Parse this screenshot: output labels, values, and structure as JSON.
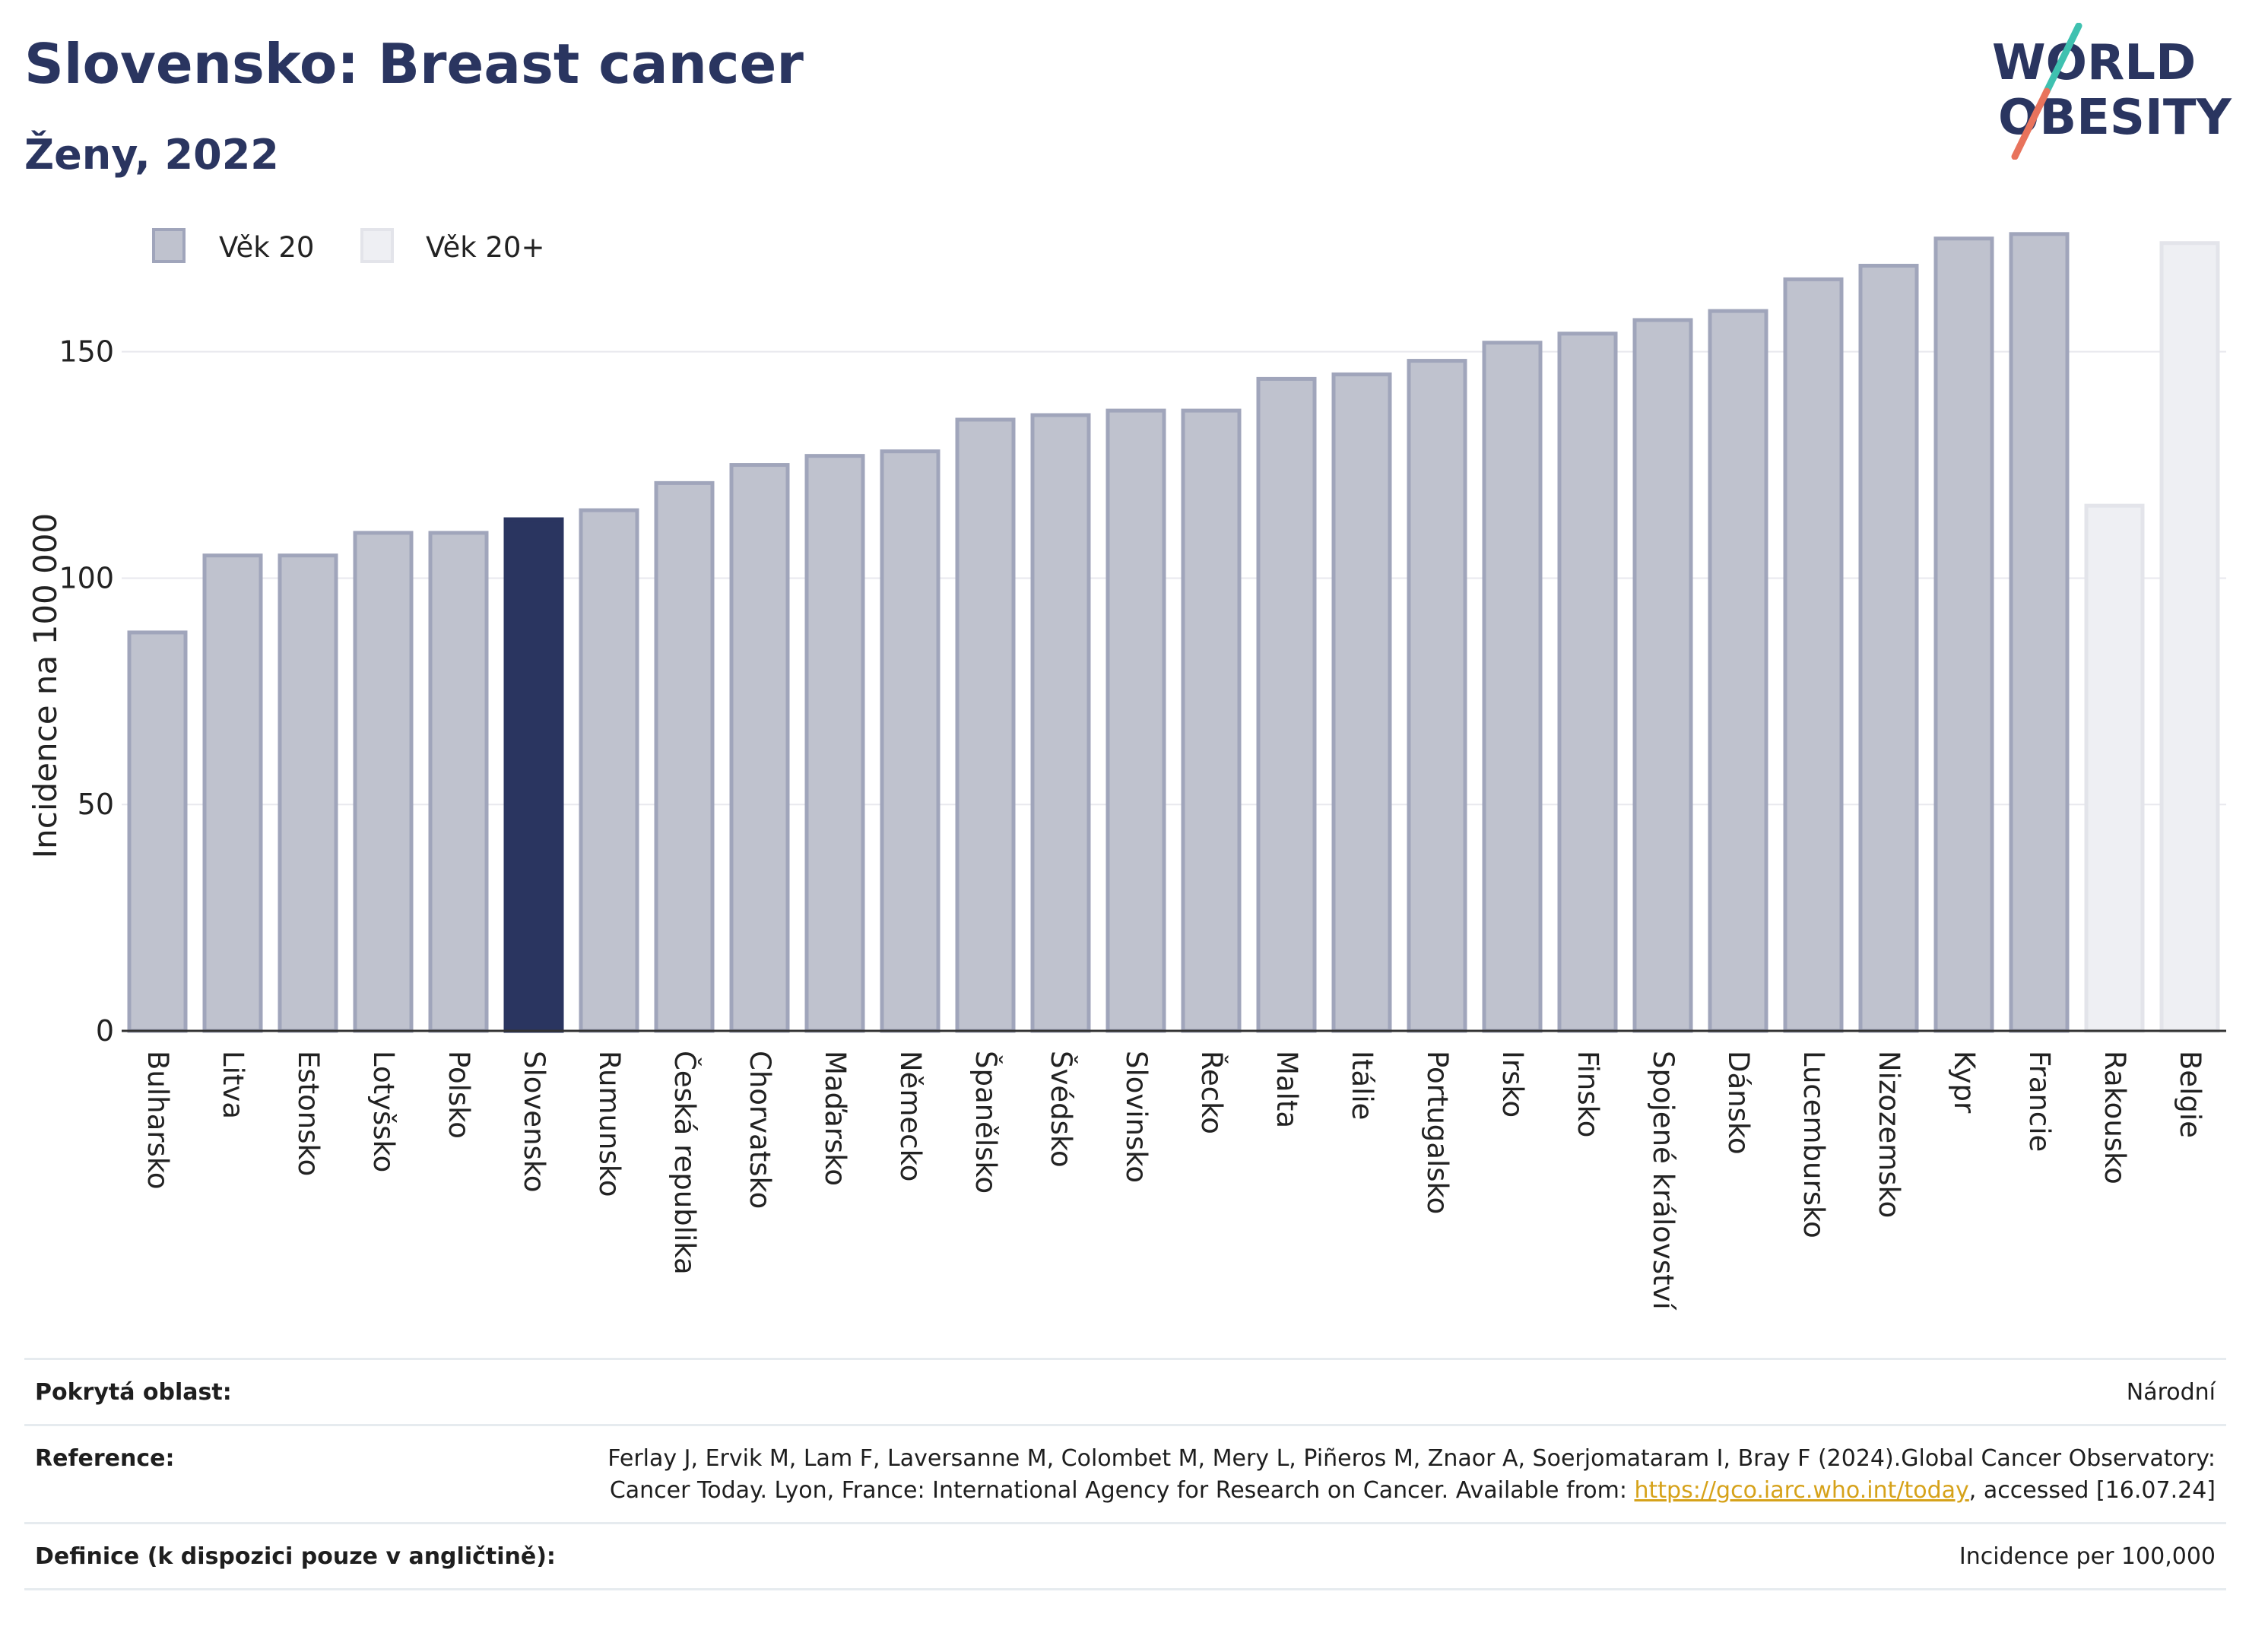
{
  "header": {
    "title": "Slovensko: Breast cancer",
    "subtitle": "Ženy, 2022"
  },
  "logo": {
    "line1": "WORLD",
    "line2": "OBESITY"
  },
  "legend": {
    "items": [
      {
        "label": "Věk 20",
        "color": "#bfc2ce"
      },
      {
        "label": "Věk 20+",
        "color": "#eeeff3"
      }
    ]
  },
  "colors": {
    "bar_default": "#bfc2ce",
    "bar_default_border": "#a0a5bb",
    "bar_highlight": "#2a3560",
    "bar_light": "#eeeff3",
    "bar_light_border": "#e3e4ea",
    "grid": "#e8e8ee",
    "logo_navy": "#2a3560",
    "logo_teal": "#3fc1b0",
    "logo_coral": "#e8735c",
    "link": "#d6a21a"
  },
  "chart_data": {
    "type": "bar",
    "ylabel": "Incidence na 100 000",
    "ylim": [
      0,
      180
    ],
    "yticks": [
      0,
      50,
      100,
      150
    ],
    "grid": true,
    "legend_position": "top-left",
    "categories": [
      "Bulharsko",
      "Litva",
      "Estonsko",
      "Lotyšsko",
      "Polsko",
      "Slovensko",
      "Rumunsko",
      "Česká republika",
      "Chorvatsko",
      "Maďarsko",
      "Německo",
      "Španělsko",
      "Švédsko",
      "Slovinsko",
      "Řecko",
      "Malta",
      "Itálie",
      "Portugalsko",
      "Irsko",
      "Finsko",
      "Spojené království",
      "Dánsko",
      "Lucembursko",
      "Nizozemsko",
      "Kypr",
      "Francie",
      "Rakousko",
      "Belgie"
    ],
    "values": [
      88,
      105,
      105,
      110,
      110,
      113,
      115,
      121,
      125,
      127,
      128,
      135,
      136,
      137,
      137,
      144,
      145,
      148,
      152,
      154,
      157,
      159,
      166,
      169,
      175,
      176,
      116,
      174
    ],
    "series_group": [
      "Věk 20",
      "Věk 20",
      "Věk 20",
      "Věk 20",
      "Věk 20",
      "Věk 20",
      "Věk 20",
      "Věk 20",
      "Věk 20",
      "Věk 20",
      "Věk 20",
      "Věk 20",
      "Věk 20",
      "Věk 20",
      "Věk 20",
      "Věk 20",
      "Věk 20",
      "Věk 20",
      "Věk 20",
      "Věk 20",
      "Věk 20",
      "Věk 20",
      "Věk 20",
      "Věk 20",
      "Věk 20",
      "Věk 20",
      "Věk 20+",
      "Věk 20+"
    ],
    "highlight": "Slovensko"
  },
  "footer": {
    "rows": [
      {
        "label": "Pokrytá oblast:",
        "value": "Národní"
      },
      {
        "label": "Reference:",
        "value_before": "Ferlay J, Ervik M, Lam F, Laversanne M, Colombet M, Mery L, Piñeros M, Znaor A, Soerjomataram I, Bray F (2024).Global Cancer Observatory: Cancer Today. Lyon, France: International Agency for Research on Cancer. Available from: ",
        "link": "https://gco.iarc.who.int/today",
        "value_after": ", accessed [16.07.24]"
      },
      {
        "label": "Definice (k dispozici pouze v angličtině):",
        "value": "Incidence per 100,000"
      }
    ]
  }
}
